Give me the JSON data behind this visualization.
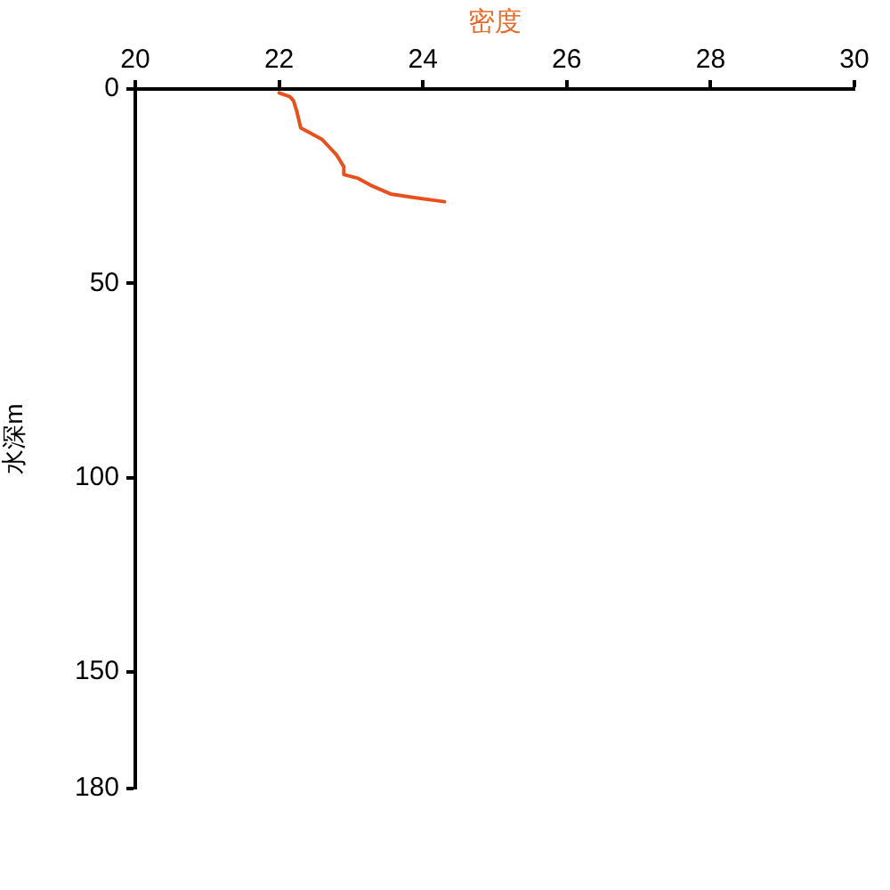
{
  "chart_data": {
    "type": "line",
    "xlabel": "密度",
    "ylabel": "水深m",
    "x": [
      22.0,
      22.15,
      22.2,
      22.25,
      22.3,
      22.4,
      22.6,
      22.7,
      22.8,
      22.9,
      22.9,
      23.1,
      23.3,
      23.55,
      23.9,
      24.3
    ],
    "values": [
      1,
      2,
      3,
      6,
      10,
      11,
      13,
      15,
      17,
      20,
      22,
      23,
      25,
      27,
      28,
      29
    ],
    "color": "#e8501e",
    "xlim": [
      20,
      30
    ],
    "xticks": [
      20,
      22,
      24,
      26,
      28,
      30
    ],
    "ylim": [
      180,
      0
    ],
    "yticks": [
      0,
      50,
      100,
      150,
      180
    ],
    "grid": false
  }
}
